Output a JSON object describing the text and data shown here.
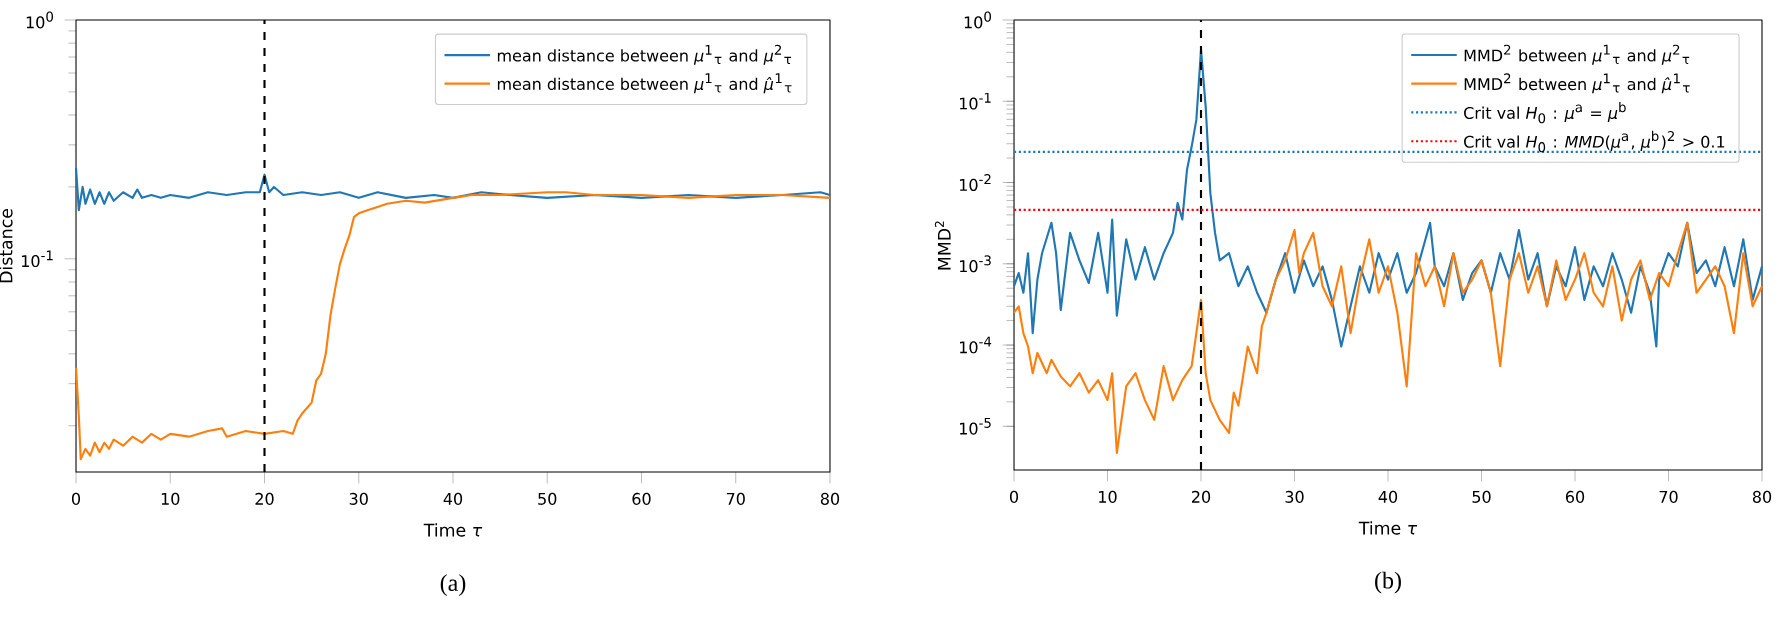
{
  "chart_data": [
    {
      "type": "line",
      "xlabel": "Time *τ*",
      "ylabel": "Distance",
      "log": "y",
      "legend": "top right",
      "xlim": [
        0,
        80
      ],
      "xticks": [
        0,
        10,
        20,
        30,
        40,
        50,
        60,
        70,
        80
      ],
      "ylim": [
        0.0128,
        1
      ],
      "yticks": [
        {
          "value": 0.1,
          "label": "10$^{-1}$"
        },
        {
          "value": 1,
          "label": "10$^{0}$"
        }
      ],
      "annotations": [
        "(a)"
      ],
      "ref_lines": [
        {
          "axis": "x",
          "value": 20,
          "color": "#000000",
          "line_style": "dashed"
        }
      ],
      "series": [
        {
          "name": "mean distance between *μ*$^{1}$$_{τ}$ and *μ*$^{2}$$_{τ}$",
          "color": "#1f77b4",
          "x": [
            0,
            0.3,
            0.7,
            1,
            1.5,
            2,
            2.5,
            3,
            3.5,
            4,
            5,
            6,
            6.5,
            7,
            8,
            9,
            10,
            12,
            14,
            16,
            18,
            19.5,
            20,
            20.5,
            21,
            22,
            24,
            26,
            28,
            30,
            32,
            35,
            38,
            40,
            43,
            46,
            50,
            55,
            60,
            65,
            70,
            75,
            79,
            80
          ],
          "values": [
            0.24,
            0.16,
            0.2,
            0.17,
            0.195,
            0.17,
            0.19,
            0.17,
            0.19,
            0.175,
            0.19,
            0.18,
            0.195,
            0.18,
            0.185,
            0.18,
            0.185,
            0.18,
            0.19,
            0.185,
            0.19,
            0.19,
            0.225,
            0.19,
            0.2,
            0.185,
            0.19,
            0.185,
            0.19,
            0.18,
            0.19,
            0.18,
            0.185,
            0.18,
            0.19,
            0.185,
            0.18,
            0.185,
            0.18,
            0.185,
            0.18,
            0.185,
            0.19,
            0.185
          ]
        },
        {
          "name": "mean distance between *μ*$^{1}$$_{τ}$ and *μ̂*$^{1}$$_{τ}$",
          "color": "#ff7f0e",
          "x": [
            0,
            0.3,
            0.5,
            1,
            1.5,
            2,
            2.5,
            3,
            3.5,
            4,
            5,
            6,
            7,
            8,
            9,
            10,
            12,
            14,
            15.5,
            16,
            18,
            20,
            22,
            23,
            23.5,
            24,
            25,
            25.5,
            26,
            26.5,
            27,
            27.5,
            28,
            28.5,
            29,
            29.5,
            30,
            31,
            32,
            33,
            35,
            37,
            40,
            42,
            45,
            50,
            52,
            55,
            60,
            65,
            70,
            75,
            80
          ],
          "values": [
            0.035,
            0.022,
            0.0145,
            0.016,
            0.015,
            0.017,
            0.0155,
            0.017,
            0.016,
            0.0175,
            0.0165,
            0.018,
            0.017,
            0.0185,
            0.0175,
            0.0185,
            0.018,
            0.019,
            0.0195,
            0.018,
            0.019,
            0.0185,
            0.019,
            0.0185,
            0.021,
            0.0225,
            0.025,
            0.031,
            0.033,
            0.04,
            0.058,
            0.075,
            0.095,
            0.11,
            0.125,
            0.15,
            0.155,
            0.16,
            0.165,
            0.17,
            0.175,
            0.172,
            0.18,
            0.185,
            0.185,
            0.19,
            0.19,
            0.185,
            0.185,
            0.18,
            0.185,
            0.185,
            0.18
          ]
        }
      ]
    },
    {
      "type": "line",
      "xlabel": "Time *τ*",
      "ylabel": "MMD$^{2}$",
      "log": "y",
      "legend": "top right",
      "xlim": [
        0,
        80
      ],
      "xticks": [
        0,
        10,
        20,
        30,
        40,
        50,
        60,
        70,
        80
      ],
      "ylim": [
        2.9e-06,
        1
      ],
      "yticks": [
        {
          "value": 1e-05,
          "label": "10$^{-5}$"
        },
        {
          "value": 0.0001,
          "label": "10$^{-4}$"
        },
        {
          "value": 0.001,
          "label": "10$^{-3}$"
        },
        {
          "value": 0.01,
          "label": "10$^{-2}$"
        },
        {
          "value": 0.1,
          "label": "10$^{-1}$"
        },
        {
          "value": 1,
          "label": "10$^{0}$"
        }
      ],
      "annotations": [
        "(b)"
      ],
      "ref_lines": [
        {
          "axis": "x",
          "value": 20,
          "color": "#000000",
          "line_style": "dashed"
        },
        {
          "axis": "y",
          "value": 0.0238,
          "color": "#1f77b4",
          "line_style": "dotted",
          "label": "Crit val *H*$_{0}$ : *μ*$^{a}$ = *μ*$^{b}$"
        },
        {
          "axis": "y",
          "value": 0.0046,
          "color": "#ff0000",
          "line_style": "dotted",
          "label": "Crit val *H*$_{0}$ : *MMD*(*μ*$^{a}$, *μ*$^{b}$)$^{2}$ > 0.1"
        }
      ],
      "series": [
        {
          "name": "MMD$^{2}$ between *μ*$^{1}$$_{τ}$ and *μ*$^{2}$$_{τ}$",
          "color": "#1f77b4",
          "x": [
            0,
            0.5,
            1,
            1.5,
            2,
            2.5,
            3,
            4,
            4.5,
            5,
            6,
            7,
            8,
            9,
            10,
            10.5,
            11,
            12,
            13,
            14,
            15,
            16,
            17,
            17.5,
            18,
            18.5,
            19,
            19.5,
            20,
            20.5,
            21,
            21.5,
            22,
            23,
            24,
            25,
            26,
            27,
            28,
            29,
            30,
            31,
            32,
            33,
            34,
            35,
            36,
            37,
            38,
            39,
            40,
            41,
            42,
            43,
            44.5,
            45,
            46,
            47,
            48,
            49,
            50,
            51,
            52,
            53,
            54,
            55,
            56,
            57,
            58,
            59,
            60,
            61,
            62,
            63,
            64,
            65,
            66,
            67,
            68,
            68.7,
            69,
            70,
            71,
            72,
            73,
            74,
            75,
            76,
            77,
            78,
            79,
            80
          ],
          "values": [
            0.00053,
            0.00077,
            0.00044,
            0.00135,
            0.00014,
            0.00064,
            0.00135,
            0.0032,
            0.00135,
            0.00027,
            0.0024,
            0.0011,
            0.00058,
            0.0024,
            0.00044,
            0.0035,
            0.00023,
            0.002,
            0.00064,
            0.0016,
            0.00064,
            0.00135,
            0.0024,
            0.0056,
            0.0035,
            0.0143,
            0.0277,
            0.059,
            0.43,
            0.086,
            0.0074,
            0.0024,
            0.0011,
            0.00135,
            0.00053,
            0.00093,
            0.00044,
            0.00025,
            0.00064,
            0.00135,
            0.00044,
            0.0011,
            0.00053,
            0.00093,
            0.00036,
            9.6e-05,
            0.0003,
            0.00093,
            0.00044,
            0.00135,
            0.00064,
            0.00135,
            0.00044,
            0.00077,
            0.0032,
            0.00093,
            0.00053,
            0.00135,
            0.00036,
            0.00077,
            0.0011,
            0.00044,
            0.00135,
            0.00064,
            0.0026,
            0.00064,
            0.00135,
            0.0003,
            0.00093,
            0.00053,
            0.0016,
            0.00036,
            0.00093,
            0.00053,
            0.00135,
            0.00064,
            0.00025,
            0.00093,
            0.00044,
            9.6e-05,
            0.00064,
            0.00135,
            0.00093,
            0.0032,
            0.00077,
            0.0011,
            0.00053,
            0.0016,
            0.00053,
            0.002,
            0.00036,
            0.00093
          ]
        },
        {
          "name": "MMD$^{2}$ between *μ*$^{1}$$_{τ}$ and *μ̂*$^{1}$$_{τ}$",
          "color": "#ff7f0e",
          "x": [
            0,
            0.5,
            1,
            1.5,
            2,
            2.5,
            3,
            3.5,
            4,
            5,
            6,
            7,
            8,
            9,
            10,
            10.5,
            11,
            12,
            13,
            14,
            15,
            16,
            17,
            18,
            19,
            19.5,
            20,
            20.5,
            21,
            22,
            23,
            23.5,
            24,
            25,
            26,
            26.5,
            27,
            28,
            29,
            30,
            30.5,
            31,
            32,
            33,
            34,
            35,
            36,
            37,
            38,
            39,
            40,
            41,
            42,
            43,
            44,
            45,
            46,
            47,
            48,
            49,
            50,
            51,
            52,
            53,
            54,
            55,
            56,
            57,
            58,
            59,
            60,
            61,
            62,
            63,
            64,
            65,
            66,
            67,
            68,
            69,
            70,
            71,
            72,
            73,
            74,
            75,
            76,
            77,
            78,
            79,
            80
          ],
          "values": [
            0.00025,
            0.0003,
            0.00014,
            9.6e-05,
            4.5e-05,
            8e-05,
            6e-05,
            4.5e-05,
            6.6e-05,
            4.1e-05,
            3.1e-05,
            4.5e-05,
            2.6e-05,
            3.7e-05,
            2.1e-05,
            4.5e-05,
            4.7e-06,
            3.1e-05,
            4.5e-05,
            2.1e-05,
            1.2e-05,
            5.5e-05,
            2.1e-05,
            3.7e-05,
            5.5e-05,
            0.00014,
            0.00036,
            4.5e-05,
            2.1e-05,
            1.2e-05,
            8.3e-06,
            2.6e-05,
            1.8e-05,
            9.6e-05,
            4.5e-05,
            0.00017,
            0.00025,
            0.00064,
            0.0011,
            0.0026,
            0.00077,
            0.00135,
            0.0024,
            0.00053,
            0.0003,
            0.00093,
            0.00014,
            0.00064,
            0.002,
            0.00044,
            0.00093,
            0.00025,
            3.1e-05,
            0.00135,
            0.00053,
            0.00093,
            0.0003,
            0.00135,
            0.00044,
            0.00064,
            0.0011,
            0.00044,
            5.5e-05,
            0.00064,
            0.00135,
            0.00044,
            0.00093,
            0.0003,
            0.0011,
            0.00036,
            0.00064,
            0.00135,
            0.00044,
            0.0003,
            0.00093,
            0.0002,
            0.00064,
            0.0011,
            0.00036,
            0.00077,
            0.00053,
            0.00135,
            0.0032,
            0.00044,
            0.00064,
            0.00093,
            0.00053,
            0.00014,
            0.00135,
            0.0003,
            0.00053
          ]
        }
      ]
    }
  ]
}
